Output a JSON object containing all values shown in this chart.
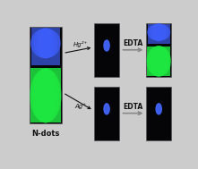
{
  "bg_color": "#cccccc",
  "dark_bg": "#050508",
  "blue_glow": "#3355ff",
  "blue_bright": "#4466ff",
  "green_glow": "#22ee44",
  "green_medium": "#11cc33",
  "label_ndots": "N-dots",
  "label_hg": "Hg²⁺",
  "label_ag": "Ag⁺",
  "label_edta": "EDTA",
  "arrow_color": "#888888",
  "text_color": "#111111",
  "edge_color": "#555555"
}
